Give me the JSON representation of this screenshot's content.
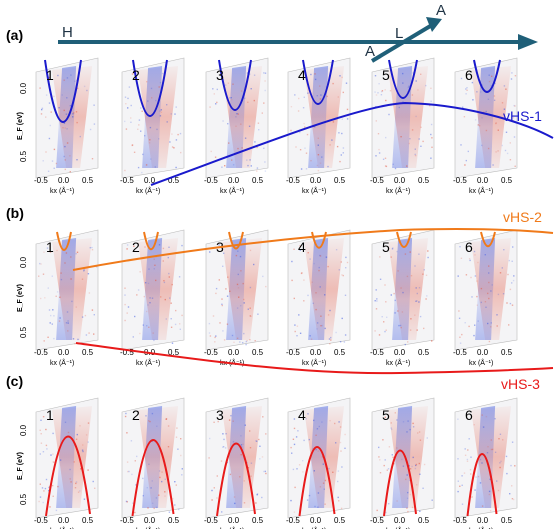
{
  "rows": [
    {
      "label": "(a)",
      "panels": [
        "1",
        "2",
        "3",
        "4",
        "5",
        "6"
      ],
      "curve_label": "vHS-1",
      "curve_color": "#1a1acc",
      "band_shape": "electron"
    },
    {
      "label": "(b)",
      "panels": [
        "1",
        "2",
        "3",
        "4",
        "5",
        "6"
      ],
      "curve_label": "vHS-2",
      "curve_color": "#f07a1a",
      "band_shape": "electron"
    },
    {
      "label": "(c)",
      "panels": [
        "1",
        "2",
        "3",
        "4",
        "5",
        "6"
      ],
      "curve_label": "vHS-3",
      "curve_color": "#e81a1a",
      "band_shape": "hole"
    }
  ],
  "axis": {
    "x_ticks": [
      "-0.5",
      "0.0",
      "0.5"
    ],
    "y_ticks": [
      "0.0",
      "0.5"
    ],
    "x_label": "kx (Å⁻¹)",
    "y_label": "E_F (eV)"
  },
  "path_arrows": {
    "horizontal_label": "H",
    "diagonal_label_mid": "L",
    "diagonal_label_start": "A",
    "diagonal_label_end": "A",
    "color": "#1f5f78"
  },
  "colors": {
    "positive": "#e2553f",
    "negative": "#3b57e0",
    "frame": "#888888"
  }
}
